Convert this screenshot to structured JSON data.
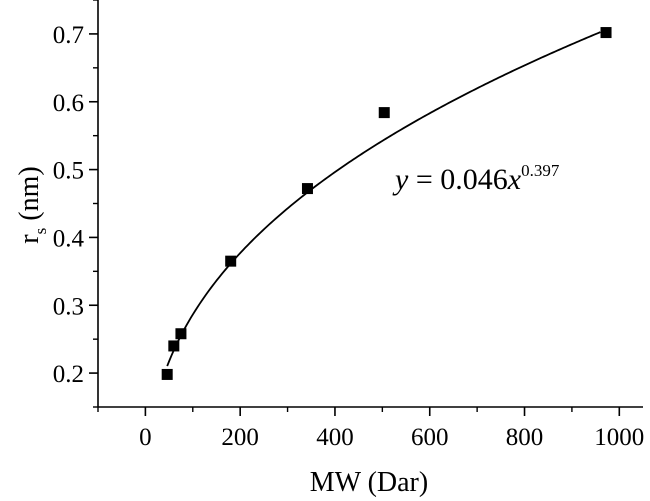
{
  "chart_data": {
    "type": "scatter",
    "xlabel": "MW (Dar)",
    "ylabel": {
      "main": "r",
      "subscript": "s",
      "unit": "(nm)"
    },
    "xlim": [
      -100,
      1050
    ],
    "ylim": [
      0.15,
      0.75
    ],
    "xticks": [
      0,
      200,
      400,
      600,
      800,
      1000
    ],
    "xtick_labels": [
      "0",
      "200",
      "400",
      "600",
      "800",
      "1000"
    ],
    "yticks": [
      0.2,
      0.3,
      0.4,
      0.5,
      0.6,
      0.7
    ],
    "ytick_labels": [
      "0.2",
      "0.3",
      "0.4",
      "0.5",
      "0.6",
      "0.7"
    ],
    "series": [
      {
        "marker": "square",
        "x": [
          46,
          60,
          75,
          180,
          342,
          504,
          972
        ],
        "y": [
          0.198,
          0.24,
          0.258,
          0.365,
          0.472,
          0.584,
          0.702
        ]
      }
    ],
    "fit": {
      "type": "power",
      "coefficient": 0.046,
      "exponent": 0.397,
      "x_range": [
        46,
        960
      ],
      "equation": {
        "y": "y",
        "equals": " = ",
        "coefficient": "0.046",
        "x": "x",
        "exponent": "0.397"
      }
    },
    "grid": false,
    "legend": "none"
  }
}
